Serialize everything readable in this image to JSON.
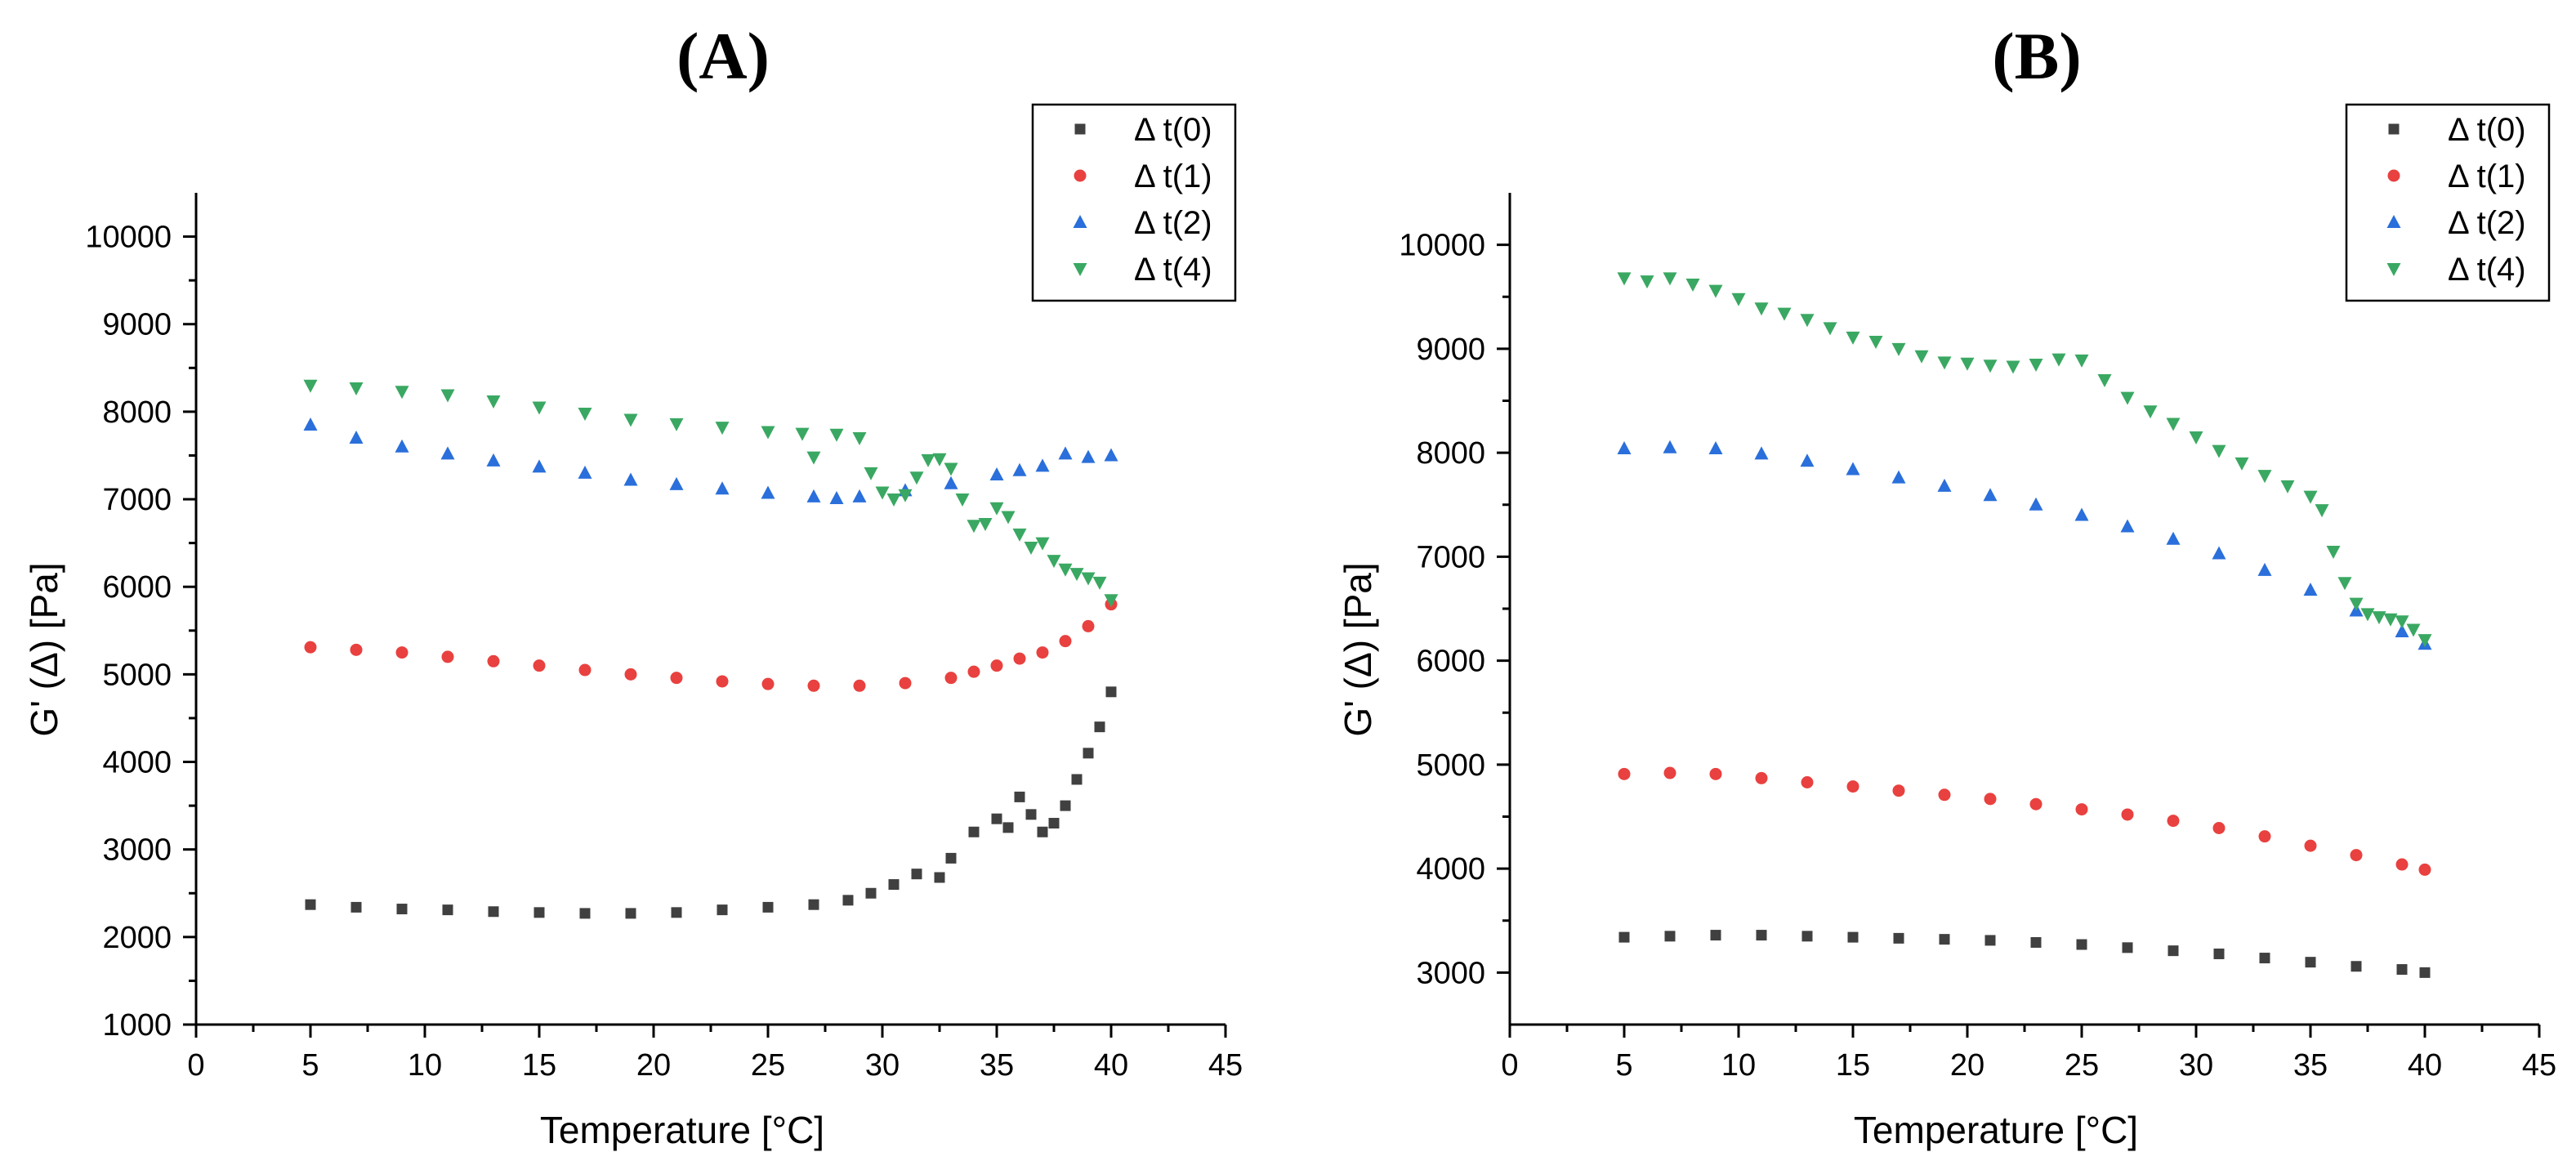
{
  "chart_data": [
    {
      "type": "scatter",
      "panel": "(A)",
      "title": "(A)",
      "xlabel": "Temperature [°C]",
      "ylabel": "G' (Δ) [Pa]",
      "xlim": [
        0,
        45
      ],
      "ylim": [
        1000,
        10500
      ],
      "xticks": [
        0,
        5,
        10,
        15,
        20,
        25,
        30,
        35,
        40,
        45
      ],
      "yticks": [
        1000,
        2000,
        3000,
        4000,
        5000,
        6000,
        7000,
        8000,
        9000,
        10000
      ],
      "legend_position": "top-right",
      "series": [
        {
          "name": "Δ t(0)",
          "marker": "square",
          "color": "#404040",
          "x": [
            5,
            7,
            9,
            11,
            13,
            15,
            17,
            19,
            21,
            23,
            25,
            27,
            28.5,
            29.5,
            30.5,
            31.5,
            32.5,
            33,
            34,
            35,
            35.5,
            36,
            36.5,
            37,
            37.5,
            38,
            38.5,
            39,
            39.5,
            40
          ],
          "y": [
            2370,
            2340,
            2320,
            2310,
            2290,
            2280,
            2270,
            2270,
            2280,
            2310,
            2340,
            2370,
            2420,
            2500,
            2600,
            2720,
            2680,
            2900,
            3200,
            3350,
            3250,
            3600,
            3400,
            3200,
            3300,
            3500,
            3800,
            4100,
            4400,
            4800
          ]
        },
        {
          "name": "Δ t(1)",
          "marker": "circle",
          "color": "#e8413f",
          "x": [
            5,
            7,
            9,
            11,
            13,
            15,
            17,
            19,
            21,
            23,
            25,
            27,
            29,
            31,
            33,
            34,
            35,
            36,
            37,
            38,
            39,
            40
          ],
          "y": [
            5310,
            5280,
            5250,
            5200,
            5150,
            5100,
            5050,
            5000,
            4960,
            4920,
            4890,
            4870,
            4870,
            4900,
            4960,
            5030,
            5100,
            5180,
            5250,
            5380,
            5550,
            5800
          ]
        },
        {
          "name": "Δ t(2)",
          "marker": "triangle-up",
          "color": "#2a6fdb",
          "x": [
            5,
            7,
            9,
            11,
            13,
            15,
            17,
            19,
            21,
            23,
            25,
            27,
            28,
            29,
            31,
            33,
            35,
            36,
            37,
            38,
            39,
            40
          ],
          "y": [
            7850,
            7700,
            7600,
            7520,
            7440,
            7370,
            7300,
            7220,
            7170,
            7120,
            7070,
            7030,
            7010,
            7030,
            7100,
            7180,
            7280,
            7330,
            7380,
            7520,
            7480,
            7500
          ]
        },
        {
          "name": "Δ t(4)",
          "marker": "triangle-down",
          "color": "#3aa862",
          "x": [
            5,
            7,
            9,
            11,
            13,
            15,
            17,
            19,
            21,
            23,
            25,
            26.5,
            27,
            28,
            29,
            29.5,
            30,
            30.5,
            31,
            31.5,
            32,
            32.5,
            33,
            33.5,
            34,
            34.5,
            35,
            35.5,
            36,
            36.5,
            37,
            37.5,
            38,
            38.5,
            39,
            39.5,
            40
          ],
          "y": [
            8300,
            8270,
            8230,
            8190,
            8120,
            8050,
            7980,
            7910,
            7860,
            7820,
            7770,
            7750,
            7480,
            7740,
            7700,
            7300,
            7080,
            7000,
            7050,
            7250,
            7450,
            7460,
            7350,
            7000,
            6700,
            6720,
            6900,
            6800,
            6600,
            6450,
            6500,
            6300,
            6200,
            6150,
            6100,
            6050,
            5850
          ]
        }
      ]
    },
    {
      "type": "scatter",
      "panel": "(B)",
      "title": "(B)",
      "xlabel": "Temperature [°C]",
      "ylabel": "G' (Δ) [Pa]",
      "xlim": [
        0,
        45
      ],
      "ylim": [
        2500,
        10500
      ],
      "xticks": [
        0,
        5,
        10,
        15,
        20,
        25,
        30,
        35,
        40,
        45
      ],
      "yticks": [
        3000,
        4000,
        5000,
        6000,
        7000,
        8000,
        9000,
        10000
      ],
      "legend_position": "top-right",
      "series": [
        {
          "name": "Δ t(0)",
          "marker": "square",
          "color": "#404040",
          "x": [
            5,
            7,
            9,
            11,
            13,
            15,
            17,
            19,
            21,
            23,
            25,
            27,
            29,
            31,
            33,
            35,
            37,
            39,
            40
          ],
          "y": [
            3340,
            3350,
            3360,
            3360,
            3350,
            3340,
            3330,
            3320,
            3310,
            3290,
            3270,
            3240,
            3210,
            3180,
            3140,
            3100,
            3060,
            3030,
            3000
          ]
        },
        {
          "name": "Δ t(1)",
          "marker": "circle",
          "color": "#e8413f",
          "x": [
            5,
            7,
            9,
            11,
            13,
            15,
            17,
            19,
            21,
            23,
            25,
            27,
            29,
            31,
            33,
            35,
            37,
            39,
            40
          ],
          "y": [
            4910,
            4920,
            4910,
            4870,
            4830,
            4790,
            4750,
            4710,
            4670,
            4620,
            4570,
            4520,
            4460,
            4390,
            4310,
            4220,
            4130,
            4040,
            3990
          ]
        },
        {
          "name": "Δ t(2)",
          "marker": "triangle-up",
          "color": "#2a6fdb",
          "x": [
            5,
            7,
            9,
            11,
            13,
            15,
            17,
            19,
            21,
            23,
            25,
            27,
            29,
            31,
            33,
            35,
            37,
            39,
            40
          ],
          "y": [
            8040,
            8050,
            8040,
            7990,
            7920,
            7840,
            7760,
            7680,
            7590,
            7500,
            7400,
            7290,
            7170,
            7030,
            6870,
            6680,
            6480,
            6280,
            6160
          ]
        },
        {
          "name": "Δ t(4)",
          "marker": "triangle-down",
          "color": "#3aa862",
          "x": [
            5,
            6,
            7,
            8,
            9,
            10,
            11,
            12,
            13,
            14,
            15,
            16,
            17,
            18,
            19,
            20,
            21,
            22,
            23,
            24,
            25,
            26,
            27,
            28,
            29,
            30,
            31,
            32,
            33,
            34,
            35,
            35.5,
            36,
            36.5,
            37,
            37.5,
            38,
            38.5,
            39,
            39.5,
            40
          ],
          "y": [
            9680,
            9650,
            9680,
            9620,
            9560,
            9480,
            9390,
            9340,
            9280,
            9200,
            9110,
            9070,
            9000,
            8930,
            8870,
            8860,
            8840,
            8830,
            8850,
            8900,
            8890,
            8700,
            8530,
            8400,
            8280,
            8150,
            8020,
            7900,
            7780,
            7680,
            7580,
            7450,
            7050,
            6750,
            6550,
            6450,
            6420,
            6400,
            6380,
            6300,
            6200
          ]
        }
      ]
    }
  ]
}
